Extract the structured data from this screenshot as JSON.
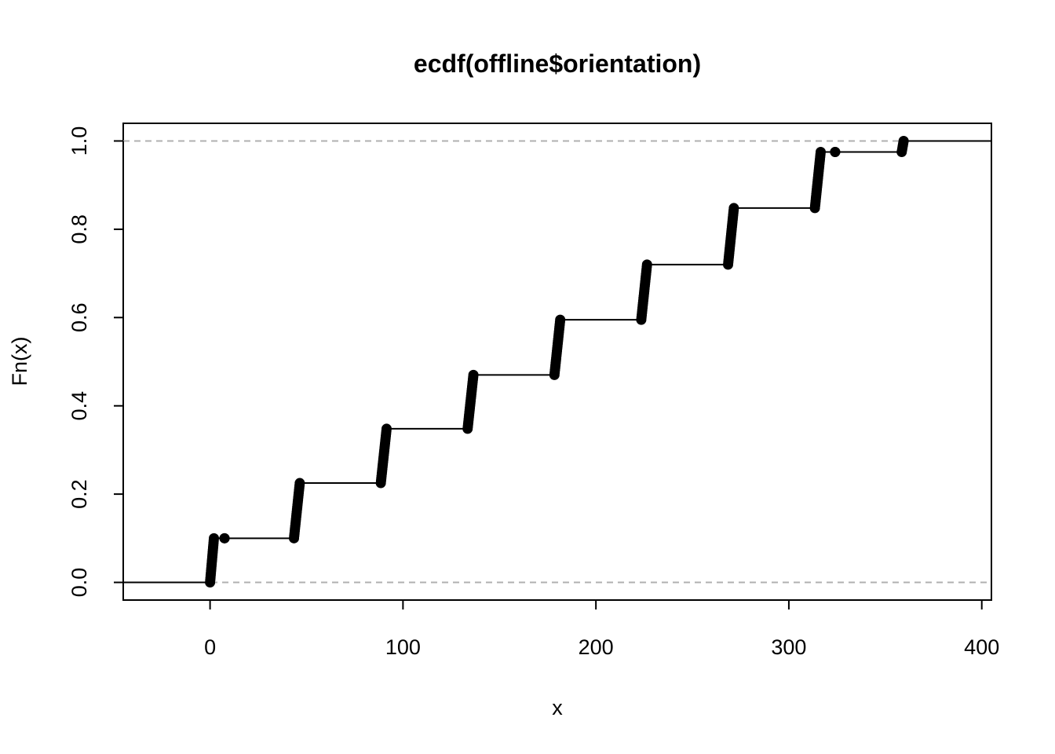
{
  "chart_data": {
    "type": "line",
    "title": "ecdf(offline$orientation)",
    "xlabel": "x",
    "ylabel": "Fn(x)",
    "xlim": [
      -45,
      405
    ],
    "ylim": [
      -0.04,
      1.04
    ],
    "x_ticks": [
      0,
      100,
      200,
      300,
      400
    ],
    "x_tick_labels": [
      "0",
      "100",
      "200",
      "300",
      "400"
    ],
    "y_ticks": [
      0.0,
      0.2,
      0.4,
      0.6,
      0.8,
      1.0
    ],
    "y_tick_labels": [
      "0.0",
      "0.2",
      "0.4",
      "0.6",
      "0.8",
      "1.0"
    ],
    "reference_lines": [
      0,
      1
    ],
    "grid": false,
    "clusters": [
      {
        "x_start": 0.0,
        "x_end": 2.0,
        "y_start": 0.0,
        "y_end": 0.1
      },
      {
        "x_start": 7.5,
        "x_end": 7.5,
        "y_start": 0.1,
        "y_end": 0.1
      },
      {
        "x_start": 43.5,
        "x_end": 46.5,
        "y_start": 0.1,
        "y_end": 0.225
      },
      {
        "x_start": 88.5,
        "x_end": 91.5,
        "y_start": 0.225,
        "y_end": 0.348
      },
      {
        "x_start": 133.5,
        "x_end": 136.5,
        "y_start": 0.348,
        "y_end": 0.47
      },
      {
        "x_start": 178.5,
        "x_end": 181.5,
        "y_start": 0.47,
        "y_end": 0.595
      },
      {
        "x_start": 223.5,
        "x_end": 226.5,
        "y_start": 0.595,
        "y_end": 0.72
      },
      {
        "x_start": 268.5,
        "x_end": 271.5,
        "y_start": 0.72,
        "y_end": 0.848
      },
      {
        "x_start": 313.5,
        "x_end": 316.5,
        "y_start": 0.848,
        "y_end": 0.975
      },
      {
        "x_start": 324.0,
        "x_end": 324.0,
        "y_start": 0.975,
        "y_end": 0.975
      },
      {
        "x_start": 358.5,
        "x_end": 359.5,
        "y_start": 0.975,
        "y_end": 1.0
      }
    ]
  }
}
